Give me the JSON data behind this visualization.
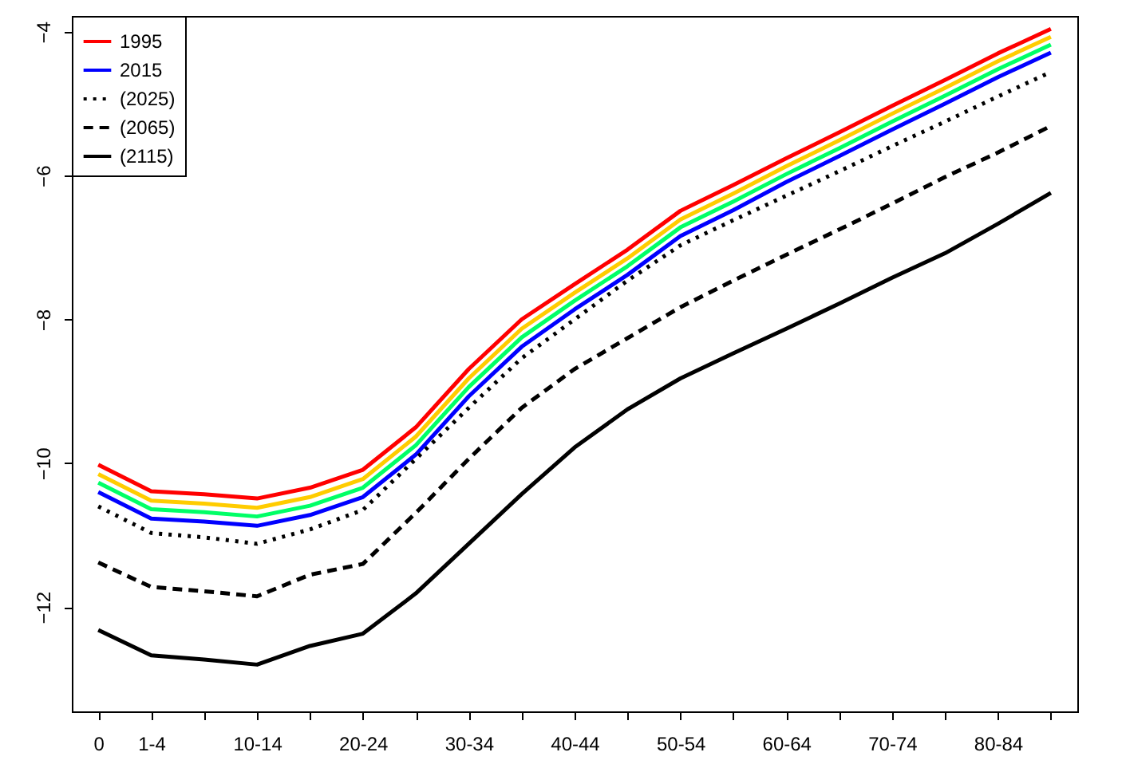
{
  "chart_data": {
    "type": "line",
    "categories": [
      "0",
      "1-4",
      null,
      "10-14",
      null,
      "20-24",
      null,
      "30-34",
      null,
      "40-44",
      null,
      "50-54",
      null,
      "60-64",
      null,
      "70-74",
      null,
      "80-84",
      null
    ],
    "ylim": [
      -13.45,
      -3.78
    ],
    "yticks": [
      -12,
      -10,
      -8,
      -6,
      -4
    ],
    "legend": "top left",
    "grid": false,
    "series": [
      {
        "name": "1995",
        "color": "#ff0000",
        "line_style": "solid",
        "values": [
          -10.02,
          -10.39,
          -10.43,
          -10.49,
          -10.34,
          -10.09,
          -9.5,
          -8.69,
          -8.0,
          -7.51,
          -7.03,
          -6.49,
          -6.13,
          -5.76,
          -5.4,
          -5.03,
          -4.67,
          -4.3,
          -3.96
        ]
      },
      {
        "color": "#ffcc00",
        "line_style": "solid",
        "values": [
          -10.15,
          -10.52,
          -10.56,
          -10.62,
          -10.47,
          -10.22,
          -9.63,
          -8.82,
          -8.13,
          -7.63,
          -7.15,
          -6.61,
          -6.25,
          -5.87,
          -5.51,
          -5.14,
          -4.78,
          -4.41,
          -4.07
        ]
      },
      {
        "color": "#00ff66",
        "line_style": "solid",
        "values": [
          -10.27,
          -10.64,
          -10.68,
          -10.74,
          -10.59,
          -10.34,
          -9.75,
          -8.94,
          -8.25,
          -7.74,
          -7.26,
          -6.72,
          -6.36,
          -5.98,
          -5.62,
          -5.25,
          -4.89,
          -4.52,
          -4.18
        ]
      },
      {
        "name": "2015",
        "color": "#0000ff",
        "line_style": "solid",
        "values": [
          -10.4,
          -10.77,
          -10.81,
          -10.87,
          -10.72,
          -10.47,
          -9.88,
          -9.07,
          -8.38,
          -7.86,
          -7.38,
          -6.84,
          -6.48,
          -6.09,
          -5.73,
          -5.36,
          -5.0,
          -4.63,
          -4.29
        ]
      },
      {
        "name": "(2025)",
        "color": "#000000",
        "line_style": "dotted",
        "values": [
          -10.6,
          -10.97,
          -11.03,
          -11.12,
          -10.92,
          -10.65,
          -9.94,
          -9.23,
          -8.54,
          -8.0,
          -7.46,
          -6.97,
          -6.62,
          -6.28,
          -5.94,
          -5.59,
          -5.25,
          -4.9,
          -4.56
        ]
      },
      {
        "name": "(2065)",
        "color": "#000000",
        "line_style": "dashed",
        "values": [
          -11.38,
          -11.72,
          -11.78,
          -11.85,
          -11.55,
          -11.4,
          -10.69,
          -9.94,
          -9.23,
          -8.69,
          -8.26,
          -7.83,
          -7.46,
          -7.1,
          -6.75,
          -6.39,
          -6.02,
          -5.68,
          -5.31
        ]
      },
      {
        "name": "(2115)",
        "color": "#000000",
        "line_style": "solid",
        "values": [
          -12.32,
          -12.67,
          -12.73,
          -12.8,
          -12.54,
          -12.37,
          -11.81,
          -11.12,
          -10.43,
          -9.78,
          -9.25,
          -8.82,
          -8.47,
          -8.13,
          -7.78,
          -7.42,
          -7.08,
          -6.67,
          -6.24
        ]
      }
    ]
  }
}
